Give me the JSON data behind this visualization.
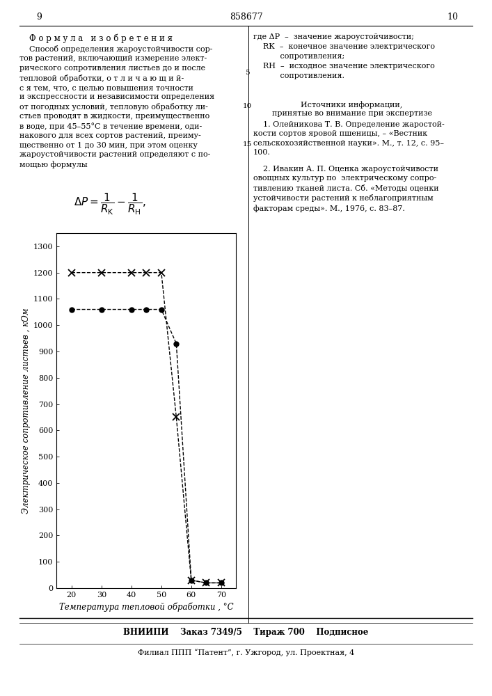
{
  "xlabel": "Температура тепловой обработки , °C",
  "ylabel": "Электрическое сопротивление листьев , кОм",
  "xlim": [
    15,
    75
  ],
  "ylim": [
    0,
    1350
  ],
  "xticks": [
    20,
    30,
    40,
    50,
    60,
    70
  ],
  "yticks": [
    0,
    100,
    200,
    300,
    400,
    500,
    600,
    700,
    800,
    900,
    1000,
    1100,
    1200,
    1300
  ],
  "series1_x": [
    20,
    30,
    40,
    45,
    50,
    55,
    60,
    65,
    70
  ],
  "series1_y": [
    1200,
    1200,
    1200,
    1200,
    1200,
    650,
    30,
    20,
    20
  ],
  "series2_x": [
    20,
    30,
    40,
    45,
    50,
    55,
    60,
    65,
    70
  ],
  "series2_y": [
    1060,
    1060,
    1060,
    1060,
    1060,
    930,
    30,
    20,
    20
  ],
  "bg_color": "#ffffff",
  "page_number_left": "9",
  "page_number_right": "10",
  "patent_number": "858677",
  "footer_text1": "ВНИИПИ    Заказ 7349/5    Тираж 700    Подписное",
  "footer_text2": "Филиал ППП “Патент”, г. Ужгород, ул. Проектная, 4"
}
